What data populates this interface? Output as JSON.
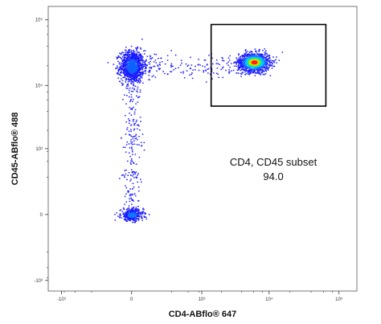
{
  "chart_data": {
    "type": "scatter",
    "title": "",
    "xlabel": "CD4-ABflo® 647",
    "ylabel": "CD45-ABflo® 488",
    "x_scale": "biexponential",
    "y_scale": "biexponential",
    "x_ticks": [
      {
        "label": "-10³",
        "value": -1000
      },
      {
        "label": "0",
        "value": 0
      },
      {
        "label": "10³",
        "value": 1000
      },
      {
        "label": "10⁴",
        "value": 10000
      },
      {
        "label": "10⁵",
        "value": 100000
      }
    ],
    "y_ticks": [
      {
        "label": "10⁵",
        "value": 100000
      },
      {
        "label": "10⁴",
        "value": 10000
      },
      {
        "label": "10³",
        "value": 1000
      },
      {
        "label": "0",
        "value": 0
      },
      {
        "label": "-10³",
        "value": -1000
      }
    ],
    "populations": [
      {
        "name": "CD4-negative, CD45-positive",
        "x_center": 0,
        "y_center": 20000
      },
      {
        "name": "CD4-positive, CD45-positive",
        "x_center": 6000,
        "y_center": 23000
      },
      {
        "name": "CD4-negative, CD45-negative",
        "x_center": 0,
        "y_center": 0
      }
    ],
    "gate": {
      "label": "CD4, CD45 subset",
      "value_text": "94.0",
      "x_range": [
        1400,
        65000
      ],
      "y_range": [
        4800,
        85000
      ]
    },
    "grid": false,
    "legend": "none"
  },
  "colors": {
    "low_density": "#1a1aff",
    "mid_density": "#00c8ff",
    "high_density": "#33ff33",
    "peak_density": "#ff2000",
    "axis": "#333333",
    "gate": "#000000"
  }
}
